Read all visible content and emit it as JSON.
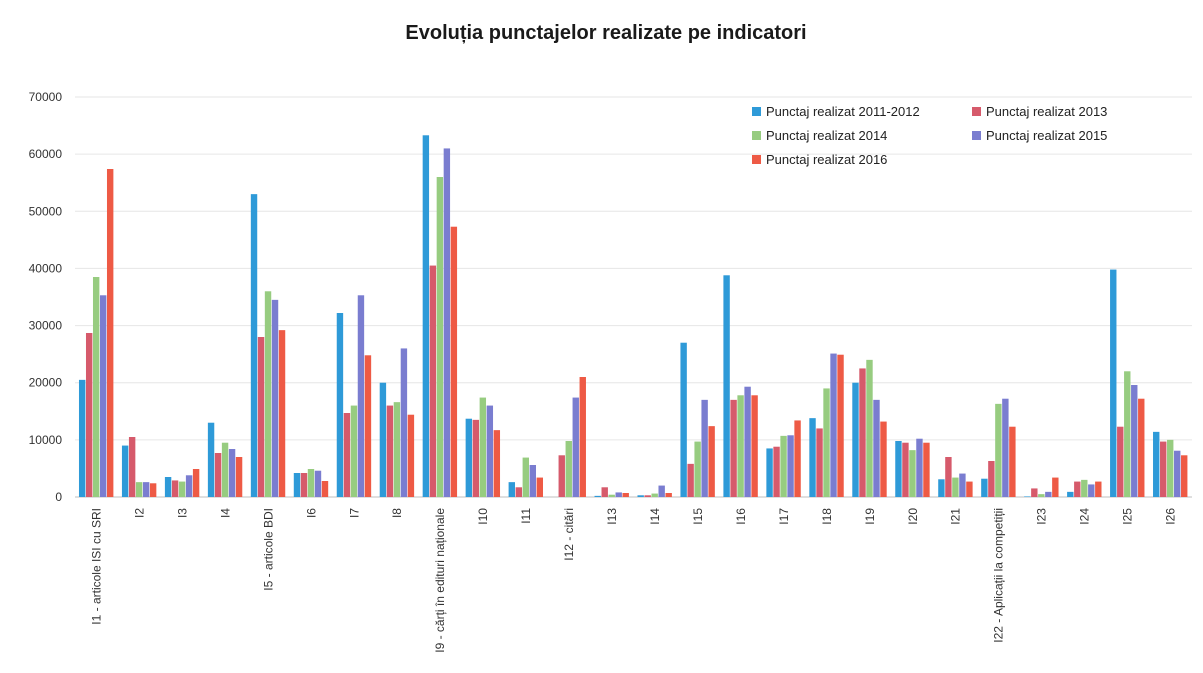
{
  "chart_data": {
    "type": "bar",
    "title": "Evoluția punctajelor realizate pe indicatori",
    "xlabel": "",
    "ylabel": "",
    "ylim": [
      0,
      70000
    ],
    "yticks": [
      "0",
      "10000",
      "20000",
      "30000",
      "40000",
      "50000",
      "60000",
      "70000"
    ],
    "grid": true,
    "legend_position": "top-right",
    "categories": [
      "I1 - articole ISI cu SRI",
      "I2",
      "I3",
      "I4",
      "I5 - articole BDI",
      "I6",
      "I7",
      "I8",
      "I9 - cărți în edituri naționale",
      "I10",
      "I11",
      "I12 - citări",
      "I13",
      "I14",
      "I15",
      "I16",
      "I17",
      "I18",
      "I19",
      "I20",
      "I21",
      "I22 - Aplicații la competiții",
      "I23",
      "I24",
      "I25",
      "I26"
    ],
    "series": [
      {
        "name": "Punctaj realizat 2011-2012",
        "color": "#2e9ad8",
        "values": [
          20500,
          9000,
          3500,
          13000,
          53000,
          4200,
          32200,
          20000,
          63300,
          13700,
          2600,
          0,
          200,
          300,
          27000,
          38800,
          8500,
          13800,
          20000,
          9800,
          3100,
          3200,
          100,
          900,
          39800,
          11400
        ]
      },
      {
        "name": "Punctaj realizat 2013",
        "color": "#d65a6b",
        "values": [
          28700,
          10500,
          2900,
          7700,
          28000,
          4200,
          14700,
          16000,
          40500,
          13500,
          1700,
          7300,
          1700,
          300,
          5800,
          17000,
          8800,
          12000,
          22500,
          9500,
          7000,
          6300,
          1500,
          2700,
          12300,
          9700
        ]
      },
      {
        "name": "Punctaj realizat 2014",
        "color": "#97cc80",
        "values": [
          38500,
          2600,
          2700,
          9500,
          36000,
          4900,
          16000,
          16600,
          56000,
          17400,
          6900,
          9800,
          400,
          600,
          9700,
          17800,
          10700,
          19000,
          24000,
          8200,
          3400,
          16300,
          500,
          3000,
          22000,
          10000
        ]
      },
      {
        "name": "Punctaj realizat 2015",
        "color": "#7a7dd0",
        "values": [
          35300,
          2600,
          3800,
          8400,
          34500,
          4600,
          35300,
          26000,
          61000,
          16000,
          5600,
          17400,
          800,
          2000,
          17000,
          19300,
          10800,
          25100,
          17000,
          10200,
          4100,
          17200,
          900,
          2200,
          19600,
          8100
        ]
      },
      {
        "name": "Punctaj realizat 2016",
        "color": "#ee5a45",
        "values": [
          57400,
          2400,
          4900,
          7000,
          29200,
          2800,
          24800,
          14400,
          47300,
          11700,
          3400,
          21000,
          700,
          700,
          12400,
          17800,
          13400,
          24900,
          13200,
          9500,
          2700,
          12300,
          3400,
          2700,
          17200,
          7300
        ]
      }
    ]
  }
}
